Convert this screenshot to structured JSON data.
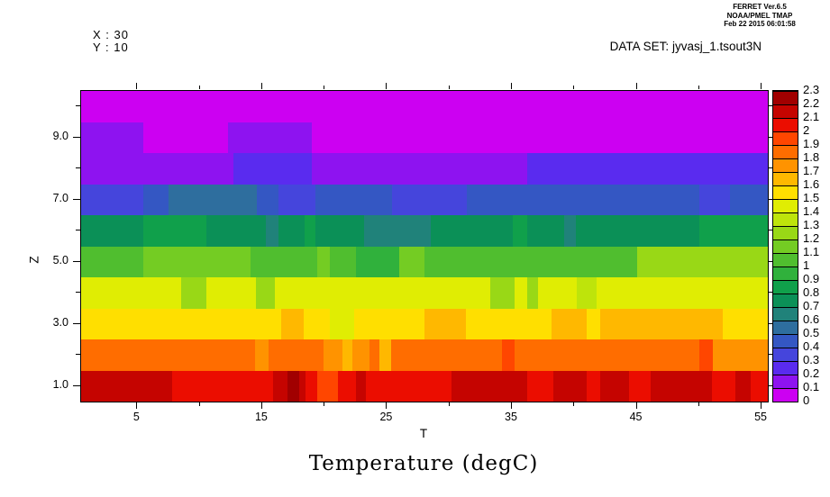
{
  "provenance": {
    "line1": "FERRET  Ver.6.5",
    "line2": "NOAA/PMEL TMAP",
    "line3": "Feb 22 2015 06:01:58"
  },
  "info": {
    "x_readout": "X : 30",
    "y_readout": "Y : 10",
    "dataset": "DATA SET: jyvasj_1.tsout3N"
  },
  "chart_data": {
    "type": "heatmap",
    "title": "Temperature (degC)",
    "xlabel": "T",
    "ylabel": "Z",
    "x_range": [
      0.5,
      55.5
    ],
    "z_range": [
      0.5,
      10.5
    ],
    "colorbar_range": [
      0,
      2.3
    ],
    "legend_position": "right",
    "grid": false,
    "x_ticks_major": [
      5,
      15,
      25,
      35,
      45,
      55
    ],
    "x_tick_labels": [
      "5",
      "15",
      "25",
      "35",
      "45",
      "55"
    ],
    "x_ticks_minor": [
      10,
      20,
      30,
      40,
      50
    ],
    "y_ticks_major": [
      1,
      3,
      5,
      7,
      9
    ],
    "y_tick_labels": [
      "1.0",
      "3.0",
      "5.0",
      "7.0",
      "9.0"
    ],
    "y_ticks_minor": [
      2,
      4,
      6,
      8,
      10
    ],
    "colorbar_labels": [
      "0",
      "0.1",
      "0.2",
      "0.3",
      "0.4",
      "0.5",
      "0.6",
      "0.7",
      "0.8",
      "0.9",
      "1",
      "1.1",
      "1.2",
      "1.3",
      "1.4",
      "1.5",
      "1.6",
      "1.7",
      "1.8",
      "1.9",
      "2",
      "2.1",
      "2.2",
      "2.3"
    ],
    "palette": {
      "0": "#CC00F2",
      "0.1": "#8E13F0",
      "0.2": "#5A2BEF",
      "0.3": "#4545DC",
      "0.4": "#3457C3",
      "0.5": "#2E6E9E",
      "0.6": "#20827A",
      "0.7": "#0B9057",
      "0.8": "#10A04B",
      "0.9": "#30B13C",
      "1": "#50BE2F",
      "1.1": "#74CC23",
      "1.2": "#99D816",
      "1.3": "#BEE40B",
      "1.4": "#E0ED03",
      "1.5": "#FFDF00",
      "1.6": "#FFB800",
      "1.7": "#FF9300",
      "1.8": "#FF6D00",
      "1.9": "#FF4600",
      "2": "#EB0D00",
      "2.1": "#C50400",
      "2.2": "#A10000"
    },
    "rows": [
      {
        "z": 10,
        "runs": [
          [
            0,
            55,
            0
          ]
        ]
      },
      {
        "z": 9,
        "runs": [
          [
            0,
            5,
            0.1
          ],
          [
            5,
            11.8,
            0
          ],
          [
            11.8,
            18.5,
            0.1
          ],
          [
            18.5,
            55,
            0
          ]
        ]
      },
      {
        "z": 8,
        "runs": [
          [
            0,
            12.2,
            0.1
          ],
          [
            12.2,
            18.5,
            0.2
          ],
          [
            18.5,
            35.7,
            0.1
          ],
          [
            35.7,
            55,
            0.2
          ]
        ]
      },
      {
        "z": 7,
        "runs": [
          [
            0,
            5,
            0.3
          ],
          [
            5,
            7,
            0.4
          ],
          [
            7,
            14.1,
            0.5
          ],
          [
            14.1,
            15.8,
            0.4
          ],
          [
            15.8,
            18.8,
            0.3
          ],
          [
            18.8,
            24.9,
            0.4
          ],
          [
            24.9,
            30.9,
            0.3
          ],
          [
            30.9,
            49.5,
            0.4
          ],
          [
            49.5,
            52,
            0.3
          ],
          [
            52,
            55,
            0.4
          ]
        ]
      },
      {
        "z": 6,
        "runs": [
          [
            0,
            5,
            0.7
          ],
          [
            5,
            10,
            0.8
          ],
          [
            10,
            14.8,
            0.7
          ],
          [
            14.8,
            15.8,
            0.6
          ],
          [
            15.8,
            17.9,
            0.7
          ],
          [
            17.9,
            18.8,
            0.8
          ],
          [
            18.8,
            22.7,
            0.7
          ],
          [
            22.7,
            28,
            0.6
          ],
          [
            28,
            34.6,
            0.7
          ],
          [
            34.6,
            35.7,
            0.8
          ],
          [
            35.7,
            38.7,
            0.7
          ],
          [
            38.7,
            39.6,
            0.6
          ],
          [
            39.6,
            49.5,
            0.7
          ],
          [
            49.5,
            55,
            0.8
          ]
        ]
      },
      {
        "z": 5,
        "runs": [
          [
            0,
            5,
            1
          ],
          [
            5,
            13.6,
            1.1
          ],
          [
            13.6,
            18.9,
            1
          ],
          [
            18.9,
            19.9,
            1.1
          ],
          [
            19.9,
            22,
            1
          ],
          [
            22,
            25.5,
            0.9
          ],
          [
            25.5,
            27.5,
            1.1
          ],
          [
            27.5,
            44.5,
            1
          ],
          [
            44.5,
            55,
            1.2
          ]
        ]
      },
      {
        "z": 4,
        "runs": [
          [
            0,
            8,
            1.4
          ],
          [
            8,
            10,
            1.2
          ],
          [
            10,
            14,
            1.4
          ],
          [
            14,
            15.5,
            1.2
          ],
          [
            15.5,
            32.8,
            1.4
          ],
          [
            32.8,
            34.7,
            1.2
          ],
          [
            34.7,
            35.7,
            1.4
          ],
          [
            35.7,
            36.6,
            1.2
          ],
          [
            36.6,
            39.7,
            1.4
          ],
          [
            39.7,
            41.3,
            1.3
          ],
          [
            41.3,
            55,
            1.4
          ]
        ]
      },
      {
        "z": 3,
        "runs": [
          [
            0,
            16,
            1.5
          ],
          [
            16,
            17.8,
            1.6
          ],
          [
            17.8,
            19.9,
            1.5
          ],
          [
            19.9,
            21.9,
            1.4
          ],
          [
            21.9,
            27.5,
            1.5
          ],
          [
            27.5,
            30.8,
            1.6
          ],
          [
            30.8,
            37.7,
            1.5
          ],
          [
            37.7,
            40.5,
            1.6
          ],
          [
            40.5,
            41.6,
            1.5
          ],
          [
            41.6,
            51.4,
            1.6
          ],
          [
            51.4,
            55,
            1.5
          ]
        ]
      },
      {
        "z": 2,
        "runs": [
          [
            0,
            13.9,
            1.8
          ],
          [
            13.9,
            15,
            1.7
          ],
          [
            15,
            19.4,
            1.8
          ],
          [
            19.4,
            20.9,
            1.7
          ],
          [
            20.9,
            21.7,
            1.6
          ],
          [
            21.7,
            23.1,
            1.7
          ],
          [
            23.1,
            23.9,
            1.8
          ],
          [
            23.9,
            24.8,
            1.6
          ],
          [
            24.8,
            33.7,
            1.8
          ],
          [
            33.7,
            34.7,
            1.9
          ],
          [
            34.7,
            49.5,
            1.8
          ],
          [
            49.5,
            50.6,
            1.9
          ],
          [
            50.6,
            55,
            1.7
          ]
        ]
      },
      {
        "z": 1,
        "runs": [
          [
            0,
            7.3,
            2.1
          ],
          [
            7.3,
            15.4,
            2
          ],
          [
            15.4,
            16.5,
            2.1
          ],
          [
            16.5,
            17.5,
            2.2
          ],
          [
            17.5,
            18,
            2.1
          ],
          [
            18,
            18.9,
            2
          ],
          [
            18.9,
            20.6,
            1.9
          ],
          [
            20.6,
            22,
            2
          ],
          [
            22,
            22.8,
            2.1
          ],
          [
            22.8,
            29.7,
            2
          ],
          [
            29.7,
            35.7,
            2.1
          ],
          [
            35.7,
            37.8,
            2
          ],
          [
            37.8,
            40.5,
            2.1
          ],
          [
            40.5,
            41.6,
            2
          ],
          [
            41.6,
            43.9,
            2.1
          ],
          [
            43.9,
            45.6,
            2
          ],
          [
            45.6,
            50.5,
            2.1
          ],
          [
            50.5,
            52.4,
            2
          ],
          [
            52.4,
            53.6,
            2.1
          ],
          [
            53.6,
            55,
            2
          ]
        ]
      }
    ]
  }
}
